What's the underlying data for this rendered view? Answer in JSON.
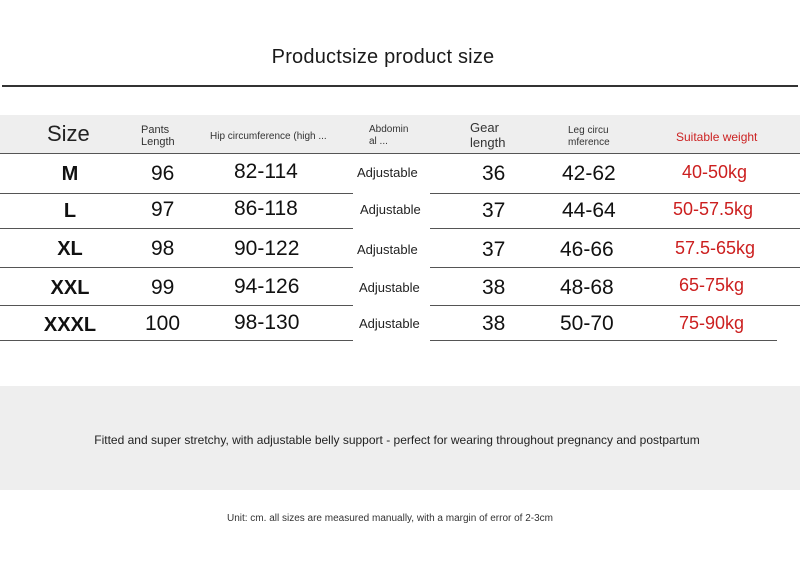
{
  "title": "Productsize product size",
  "headers": {
    "size": "Size",
    "pants_length": [
      "Pants",
      "Length"
    ],
    "hip": "Hip circumference (high ...",
    "abdominal": [
      "Abdomin",
      "al ..."
    ],
    "gear_length": [
      "Gear",
      "length"
    ],
    "leg": [
      "Leg circu",
      "mference"
    ],
    "weight": "Suitable weight"
  },
  "rows": [
    {
      "size": "M",
      "pants_length": "96",
      "hip": "82-114",
      "abdominal": "Adjustable",
      "gear_length": "36",
      "leg": "42-62",
      "weight": "40-50kg"
    },
    {
      "size": "L",
      "pants_length": "97",
      "hip": "86-118",
      "abdominal": "Adjustable",
      "gear_length": "37",
      "leg": "44-64",
      "weight": "50-57.5kg"
    },
    {
      "size": "XL",
      "pants_length": "98",
      "hip": "90-122",
      "abdominal": "Adjustable",
      "gear_length": "37",
      "leg": "46-66",
      "weight": "57.5-65kg"
    },
    {
      "size": "XXL",
      "pants_length": "99",
      "hip": "94-126",
      "abdominal": "Adjustable",
      "gear_length": "38",
      "leg": "48-68",
      "weight": "65-75kg"
    },
    {
      "size": "XXXL",
      "pants_length": "100",
      "hip": "98-130",
      "abdominal": "Adjustable",
      "gear_length": "38",
      "leg": "50-70",
      "weight": "75-90kg"
    }
  ],
  "description": "Fitted and super stretchy, with adjustable belly support - perfect for wearing throughout pregnancy and postpartum",
  "note": "Unit: cm. all sizes are measured manually, with a margin of error of 2-3cm",
  "colors": {
    "weight_text": "#cc1f1f",
    "band": "#eeeeee"
  }
}
